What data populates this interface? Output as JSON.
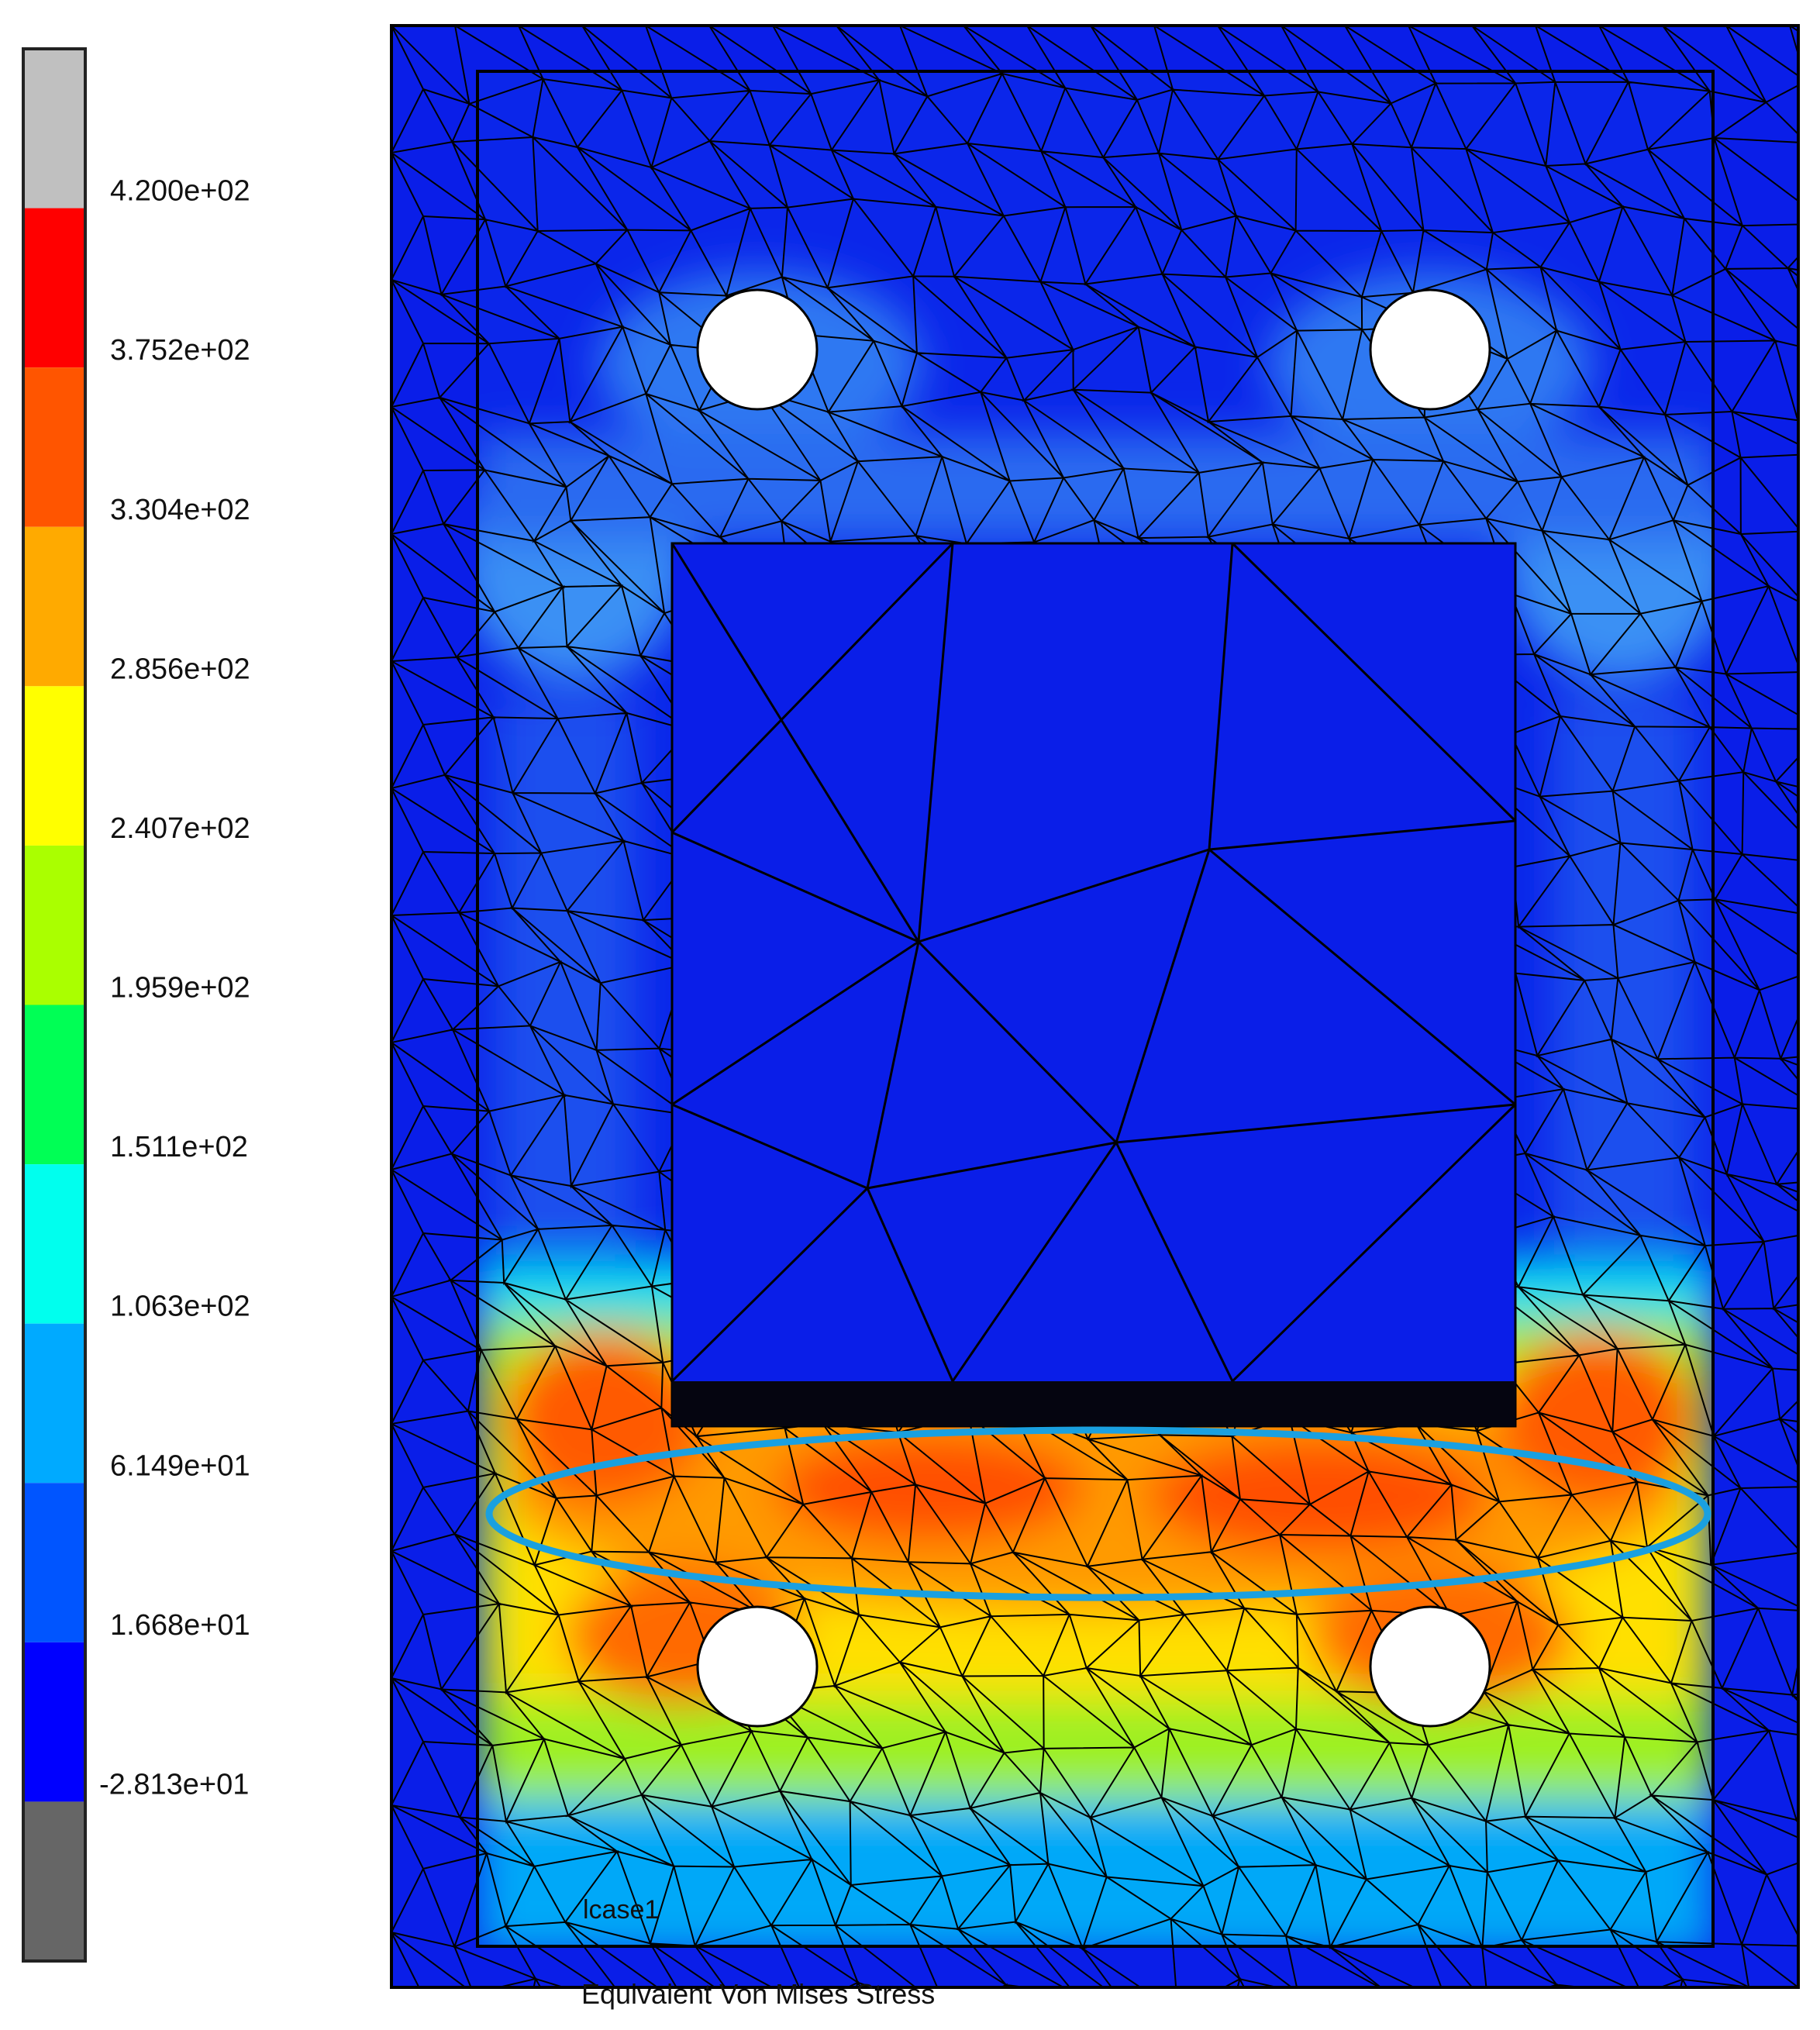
{
  "legend": {
    "segments": [
      "#c0c0c0",
      "#ff0000",
      "#ff5500",
      "#ffaa00",
      "#ffff00",
      "#aaff00",
      "#00ff55",
      "#00ffee",
      "#00aaff",
      "#0055ff",
      "#0000ff",
      "#666666"
    ],
    "labels": [
      "4.200e+02",
      "3.752e+02",
      "3.304e+02",
      "2.856e+02",
      "2.407e+02",
      "1.959e+02",
      "1.511e+02",
      "1.063e+02",
      "6.149e+01",
      "1.668e+01",
      "-2.813e+01"
    ]
  },
  "plot": {
    "case_label": "lcase1",
    "caption": "Equivalent Von Mises Stress"
  }
}
